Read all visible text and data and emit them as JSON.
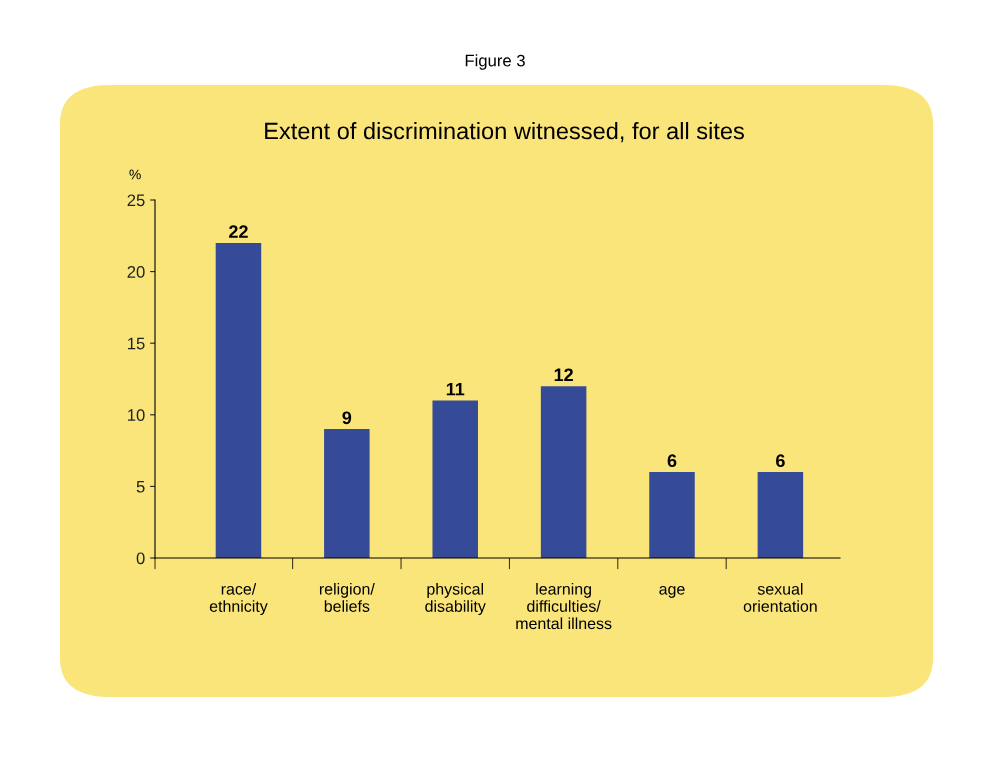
{
  "chart_data": {
    "type": "bar",
    "title": "Extent of discrimination witnessed, for all sites",
    "annotations": [
      "Figure 3"
    ],
    "ylabel": "%",
    "categories": [
      "race/\nethnicity",
      "religion/\nbeliefs",
      "physical\ndisability",
      "learning\ndifficulties/\nmental illness",
      "age",
      "sexual\norientation"
    ],
    "values": [
      22,
      9,
      11,
      12,
      6,
      6
    ],
    "color": "#354b97",
    "data_labels": true,
    "ylim": [
      0,
      25
    ],
    "yticks": [
      0,
      5,
      10,
      15,
      20,
      25
    ],
    "grid": false,
    "legend": false
  }
}
